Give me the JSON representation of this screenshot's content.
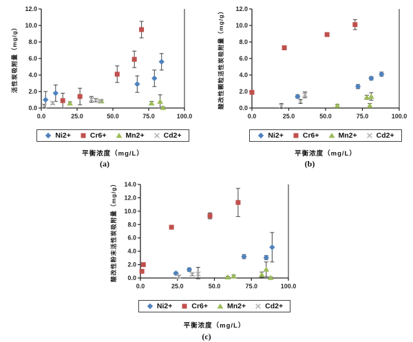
{
  "figure": {
    "background": "#ffffff",
    "description_visible_text_only": true
  },
  "style_colors": {
    "axis": "#1f1f1f",
    "error_bar": "#404040",
    "tick_text": "#262626",
    "ni_blue": "#4F81BD",
    "cr_red": "#C0504D",
    "mn_olive": "#9BBB59",
    "cd_gray": "#B3B3B3"
  },
  "chart_data": [
    {
      "type": "scatter",
      "panel": "a",
      "caption": "(a)",
      "ylabel": "活性炭吸附量（mg/g）",
      "xlabel": "平衡浓度（mg/L）",
      "xlim": [
        0,
        100
      ],
      "ylim": [
        0,
        12
      ],
      "xtick_step": 25,
      "ytick_step": 2,
      "grid": false,
      "legend_position": "bottom",
      "error_bars": true,
      "series": [
        {
          "name": "Ni2+",
          "marker": "diamond",
          "color": "#4F81BD",
          "points": [
            [
              3,
              1.0,
              1.0
            ],
            [
              10,
              1.8,
              1.0
            ],
            [
              67,
              2.9,
              1.0
            ],
            [
              79,
              3.6,
              1.0
            ],
            [
              84,
              5.6,
              1.0
            ]
          ]
        },
        {
          "name": "Cr6+",
          "marker": "square",
          "color": "#C0504D",
          "points": [
            [
              15,
              0.9,
              0.9
            ],
            [
              27,
              1.4,
              1.0
            ],
            [
              53,
              4.1,
              1.0
            ],
            [
              65,
              5.9,
              1.0
            ],
            [
              70,
              9.5,
              1.0
            ]
          ]
        },
        {
          "name": "Mn2+",
          "marker": "triangle",
          "color": "#9BBB59",
          "points": [
            [
              20,
              0.6,
              0.15
            ],
            [
              42,
              0.85,
              0.15
            ],
            [
              77,
              0.6,
              0.2
            ],
            [
              83,
              0.8,
              0.8
            ],
            [
              85,
              0.05,
              0.1
            ]
          ]
        },
        {
          "name": "Cd2+",
          "marker": "x",
          "color": "#B3B3B3",
          "points": [
            [
              2,
              0.25,
              0.2
            ],
            [
              8,
              0.6,
              0.15
            ],
            [
              35,
              1.05,
              0.35
            ],
            [
              38,
              0.95,
              0.2
            ],
            [
              41,
              0.85,
              0.1
            ]
          ]
        }
      ]
    },
    {
      "type": "scatter",
      "panel": "b",
      "caption": "(b)",
      "ylabel": "酸改性颗粒活性炭吸附量（mg/g）",
      "xlabel": "平衡浓度（mg/L）",
      "xlim": [
        0,
        100
      ],
      "ylim": [
        0,
        12
      ],
      "xtick_step": 25,
      "ytick_step": 2,
      "grid": false,
      "legend_position": "bottom",
      "error_bars": true,
      "series": [
        {
          "name": "Ni2+",
          "marker": "diamond",
          "color": "#4F81BD",
          "points": [
            [
              31,
              1.4,
              0.2
            ],
            [
              72,
              2.6,
              0.25
            ],
            [
              81,
              3.6,
              0.2
            ],
            [
              88,
              4.1,
              0.25
            ]
          ]
        },
        {
          "name": "Cr6+",
          "marker": "square",
          "color": "#C0504D",
          "points": [
            [
              0,
              1.9,
              0.2
            ],
            [
              22,
              7.3,
              0.25
            ],
            [
              51,
              8.9,
              0.2
            ],
            [
              70,
              10.1,
              0.6
            ]
          ]
        },
        {
          "name": "Mn2+",
          "marker": "triangle",
          "color": "#9BBB59",
          "points": [
            [
              58,
              0.3,
              0.15
            ],
            [
              78,
              1.3,
              0.25
            ],
            [
              80,
              0.3,
              0.25
            ],
            [
              81,
              1.4,
              0.45
            ]
          ]
        },
        {
          "name": "Cd2+",
          "marker": "x",
          "color": "#B3B3B3",
          "points": [
            [
              20,
              0.25,
              0.3
            ],
            [
              33,
              0.8,
              0.25
            ],
            [
              36,
              1.6,
              0.35
            ]
          ]
        }
      ]
    },
    {
      "type": "scatter",
      "panel": "c",
      "caption": "(c)",
      "ylabel": "酸改性粉末活性炭吸附量（mg/g）",
      "xlabel": "平衡浓度（mg/L）",
      "xlim": [
        0,
        100
      ],
      "ylim": [
        0,
        14
      ],
      "xtick_step": 25,
      "ytick_step": 2,
      "grid": false,
      "legend_position": "bottom",
      "error_bars": true,
      "series": [
        {
          "name": "Ni2+",
          "marker": "diamond",
          "color": "#4F81BD",
          "points": [
            [
              24,
              0.7,
              0.2
            ],
            [
              33,
              1.25,
              0.25
            ],
            [
              70,
              3.2,
              0.3
            ],
            [
              85,
              3.05,
              0.3
            ],
            [
              89,
              4.6,
              2.2
            ]
          ]
        },
        {
          "name": "Cr6+",
          "marker": "square",
          "color": "#C0504D",
          "points": [
            [
              1,
              1.0,
              0.2
            ],
            [
              2,
              2.0,
              0.25
            ],
            [
              21,
              7.6,
              0.2
            ],
            [
              47,
              9.3,
              0.45
            ],
            [
              66,
              11.3,
              2.1
            ]
          ]
        },
        {
          "name": "Mn2+",
          "marker": "triangle",
          "color": "#9BBB59",
          "points": [
            [
              59,
              0.15,
              0.1
            ],
            [
              63,
              0.3,
              0.15
            ],
            [
              82,
              0.5,
              0.4
            ],
            [
              85,
              1.3,
              1.1
            ],
            [
              88,
              0.05,
              0.1
            ]
          ]
        },
        {
          "name": "Cd2+",
          "marker": "x",
          "color": "#B3B3B3",
          "points": [
            [
              26,
              0.2,
              0.2
            ],
            [
              35,
              0.55,
              0.2
            ],
            [
              39,
              0.6,
              1.0
            ]
          ]
        }
      ]
    }
  ]
}
